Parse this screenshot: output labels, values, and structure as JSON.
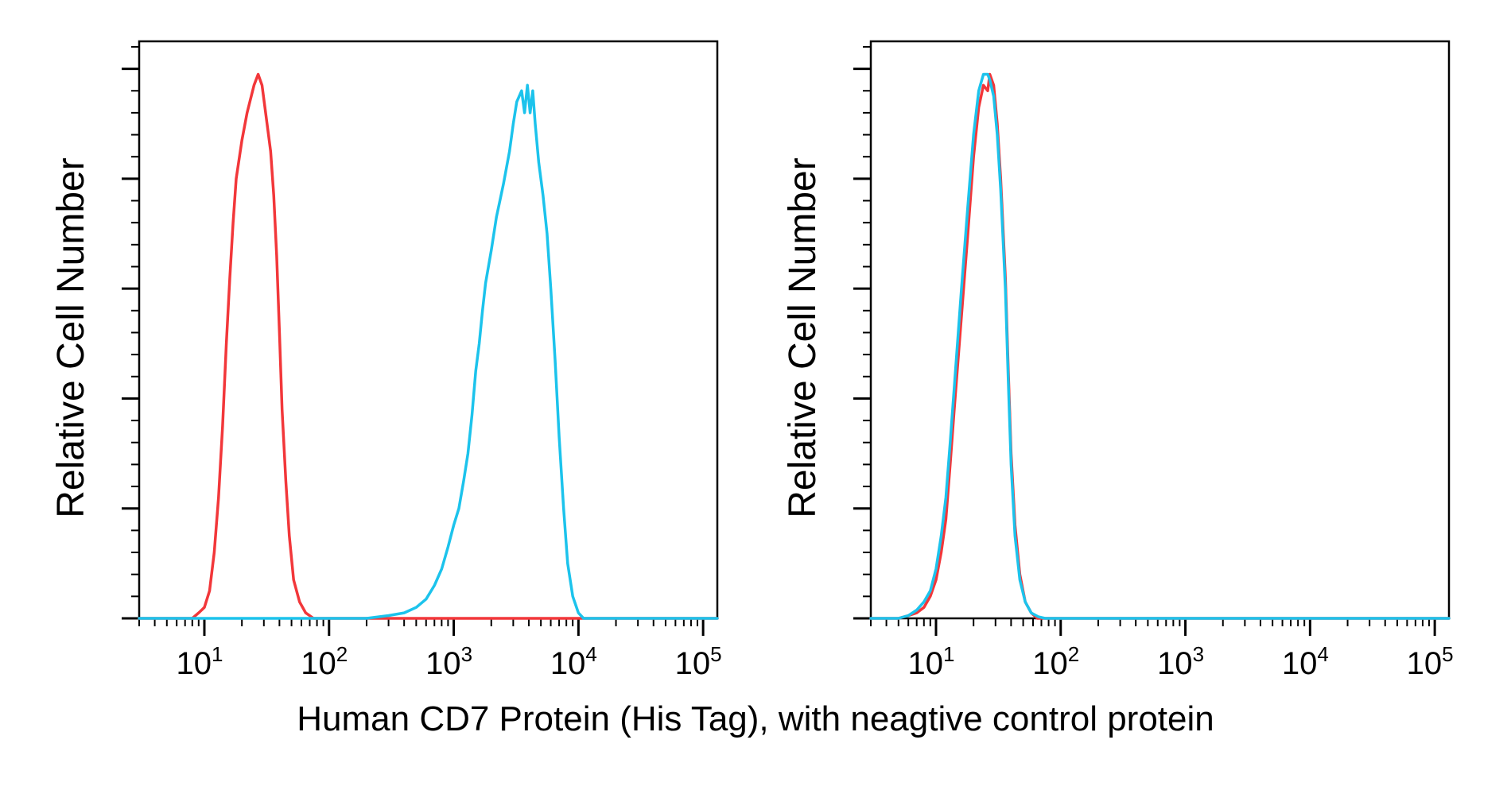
{
  "caption": "Human CD7 Protein (His Tag), with neagtive control protein",
  "colors": {
    "red": "#f2373a",
    "cyan": "#1cc3ec"
  },
  "chart_data": [
    {
      "type": "line",
      "ylabel": "Relative Cell Number",
      "xlabel": "",
      "xscale": "log",
      "xlim": [
        3,
        130000
      ],
      "ylim": [
        0,
        1.05
      ],
      "xticks": [
        {
          "base": "10",
          "exp": "1",
          "value": 10
        },
        {
          "base": "10",
          "exp": "2",
          "value": 100
        },
        {
          "base": "10",
          "exp": "3",
          "value": 1000
        },
        {
          "base": "10",
          "exp": "4",
          "value": 10000
        },
        {
          "base": "10",
          "exp": "5",
          "value": 100000
        }
      ],
      "yticks": [
        0,
        0.2,
        0.4,
        0.6,
        0.8,
        1.0
      ],
      "grid": false,
      "series": [
        {
          "color": "#f2373a",
          "points": [
            [
              3,
              0
            ],
            [
              8,
              0
            ],
            [
              9,
              0.01
            ],
            [
              10,
              0.02
            ],
            [
              11,
              0.05
            ],
            [
              12,
              0.12
            ],
            [
              13,
              0.22
            ],
            [
              14,
              0.35
            ],
            [
              15,
              0.5
            ],
            [
              16,
              0.62
            ],
            [
              17,
              0.72
            ],
            [
              18,
              0.8
            ],
            [
              20,
              0.87
            ],
            [
              22,
              0.92
            ],
            [
              25,
              0.97
            ],
            [
              27,
              0.99
            ],
            [
              29,
              0.97
            ],
            [
              31,
              0.92
            ],
            [
              34,
              0.85
            ],
            [
              36,
              0.77
            ],
            [
              38,
              0.66
            ],
            [
              40,
              0.52
            ],
            [
              42,
              0.38
            ],
            [
              45,
              0.25
            ],
            [
              48,
              0.15
            ],
            [
              52,
              0.07
            ],
            [
              58,
              0.03
            ],
            [
              65,
              0.01
            ],
            [
              75,
              0
            ],
            [
              1000,
              0
            ],
            [
              10000,
              0
            ],
            [
              130000,
              0
            ]
          ]
        },
        {
          "color": "#1cc3ec",
          "points": [
            [
              3,
              0
            ],
            [
              200,
              0
            ],
            [
              300,
              0.005
            ],
            [
              400,
              0.01
            ],
            [
              500,
              0.02
            ],
            [
              600,
              0.035
            ],
            [
              700,
              0.06
            ],
            [
              800,
              0.09
            ],
            [
              900,
              0.13
            ],
            [
              1000,
              0.17
            ],
            [
              1100,
              0.2
            ],
            [
              1200,
              0.25
            ],
            [
              1300,
              0.3
            ],
            [
              1400,
              0.37
            ],
            [
              1500,
              0.45
            ],
            [
              1600,
              0.5
            ],
            [
              1700,
              0.56
            ],
            [
              1800,
              0.61
            ],
            [
              2000,
              0.67
            ],
            [
              2200,
              0.73
            ],
            [
              2500,
              0.79
            ],
            [
              2800,
              0.85
            ],
            [
              3000,
              0.9
            ],
            [
              3200,
              0.94
            ],
            [
              3500,
              0.96
            ],
            [
              3700,
              0.92
            ],
            [
              3900,
              0.97
            ],
            [
              4100,
              0.92
            ],
            [
              4300,
              0.96
            ],
            [
              4500,
              0.9
            ],
            [
              4800,
              0.83
            ],
            [
              5200,
              0.77
            ],
            [
              5600,
              0.7
            ],
            [
              6000,
              0.6
            ],
            [
              6500,
              0.47
            ],
            [
              7000,
              0.33
            ],
            [
              7600,
              0.2
            ],
            [
              8200,
              0.1
            ],
            [
              9000,
              0.04
            ],
            [
              10000,
              0.01
            ],
            [
              11000,
              0
            ],
            [
              130000,
              0
            ]
          ]
        }
      ]
    },
    {
      "type": "line",
      "ylabel": "Relative Cell Number",
      "xlabel": "",
      "xscale": "log",
      "xlim": [
        3,
        130000
      ],
      "ylim": [
        0,
        1.05
      ],
      "xticks": [
        {
          "base": "10",
          "exp": "1",
          "value": 10
        },
        {
          "base": "10",
          "exp": "2",
          "value": 100
        },
        {
          "base": "10",
          "exp": "3",
          "value": 1000
        },
        {
          "base": "10",
          "exp": "4",
          "value": 10000
        },
        {
          "base": "10",
          "exp": "5",
          "value": 100000
        }
      ],
      "yticks": [
        0,
        0.2,
        0.4,
        0.6,
        0.8,
        1.0
      ],
      "grid": false,
      "series": [
        {
          "color": "#f2373a",
          "points": [
            [
              3,
              0
            ],
            [
              5,
              0
            ],
            [
              6,
              0.005
            ],
            [
              7,
              0.01
            ],
            [
              8,
              0.02
            ],
            [
              9,
              0.04
            ],
            [
              10,
              0.07
            ],
            [
              11,
              0.12
            ],
            [
              12,
              0.18
            ],
            [
              13,
              0.28
            ],
            [
              14,
              0.38
            ],
            [
              16,
              0.55
            ],
            [
              18,
              0.7
            ],
            [
              20,
              0.84
            ],
            [
              22,
              0.93
            ],
            [
              24,
              0.97
            ],
            [
              26,
              0.96
            ],
            [
              27,
              0.99
            ],
            [
              29,
              0.97
            ],
            [
              31,
              0.9
            ],
            [
              33,
              0.8
            ],
            [
              36,
              0.62
            ],
            [
              38,
              0.45
            ],
            [
              40,
              0.3
            ],
            [
              43,
              0.17
            ],
            [
              47,
              0.08
            ],
            [
              52,
              0.03
            ],
            [
              58,
              0.01
            ],
            [
              65,
              0
            ],
            [
              130000,
              0
            ]
          ]
        },
        {
          "color": "#1cc3ec",
          "points": [
            [
              3,
              0
            ],
            [
              5,
              0
            ],
            [
              6,
              0.005
            ],
            [
              7,
              0.015
            ],
            [
              8,
              0.03
            ],
            [
              9,
              0.05
            ],
            [
              10,
              0.09
            ],
            [
              11,
              0.15
            ],
            [
              12,
              0.22
            ],
            [
              13,
              0.32
            ],
            [
              14,
              0.42
            ],
            [
              16,
              0.6
            ],
            [
              18,
              0.75
            ],
            [
              20,
              0.88
            ],
            [
              22,
              0.96
            ],
            [
              24,
              0.99
            ],
            [
              26,
              0.99
            ],
            [
              27,
              0.98
            ],
            [
              29,
              0.95
            ],
            [
              31,
              0.88
            ],
            [
              33,
              0.78
            ],
            [
              36,
              0.6
            ],
            [
              38,
              0.43
            ],
            [
              40,
              0.28
            ],
            [
              43,
              0.15
            ],
            [
              47,
              0.07
            ],
            [
              52,
              0.03
            ],
            [
              58,
              0.01
            ],
            [
              66,
              0.003
            ],
            [
              75,
              0
            ],
            [
              130000,
              0
            ]
          ]
        }
      ]
    }
  ]
}
